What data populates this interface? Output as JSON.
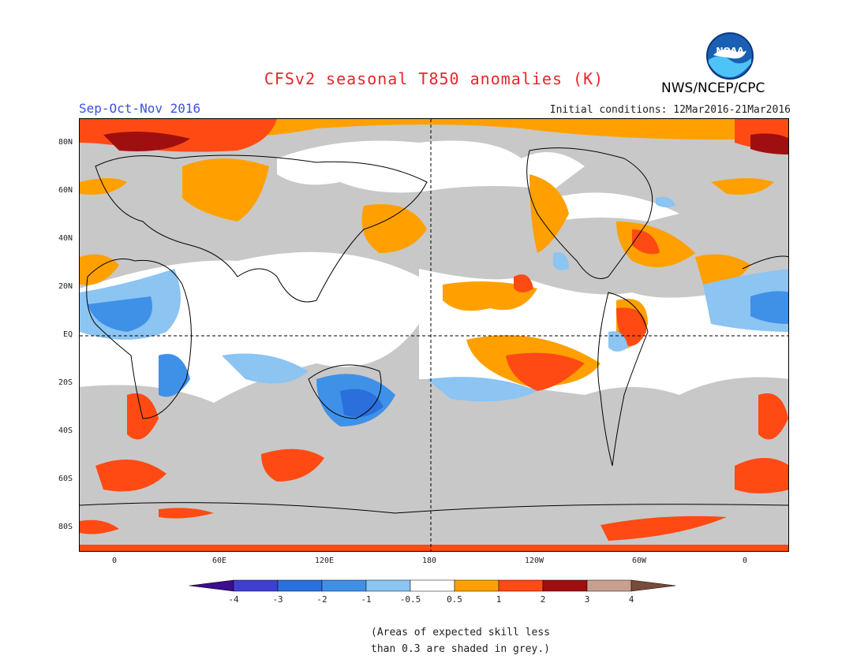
{
  "title": "CFSv2 seasonal T850 anomalies (K)",
  "agency": "NWS/NCEP/CPC",
  "logo_text": "NOAA",
  "season": "Sep-Oct-Nov 2016",
  "initial_conditions": "Initial conditions: 12Mar2016-21Mar2016",
  "lat_labels": [
    "80N",
    "60N",
    "40N",
    "20N",
    "EQ",
    "20S",
    "40S",
    "60S",
    "80S"
  ],
  "lon_labels": [
    "0",
    "60E",
    "120E",
    "180",
    "120W",
    "60W",
    "0"
  ],
  "colorbar": {
    "labels": [
      "-4",
      "-3",
      "-2",
      "-1",
      "-0.5",
      "0.5",
      "1",
      "2",
      "3",
      "4"
    ],
    "colors": [
      "#3a0e8c",
      "#3f3fcf",
      "#2a6fdc",
      "#3f91e8",
      "#8cc4f2",
      "#ffffff",
      "#ffa000",
      "#ff4a14",
      "#a00f0f",
      "#c8a090",
      "#7a4a3a"
    ]
  },
  "skill_shade_color": "#c8c8c8",
  "note_line1": "(Areas of expected skill less",
  "note_line2": "than 0.3 are shaded in grey.)"
}
